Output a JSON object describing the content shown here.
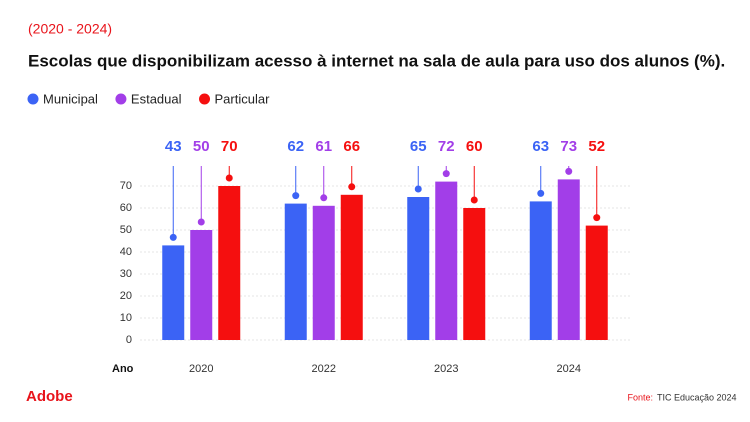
{
  "chart_data": {
    "type": "bar",
    "subtitle": "(2020 - 2024)",
    "title": "Escolas que disponibilizam acesso à internet na sala de aula para uso dos alunos (%).",
    "x_label": "Ano",
    "categories": [
      "2020",
      "2022",
      "2023",
      "2024"
    ],
    "series": [
      {
        "name": "Municipal",
        "color": "#3b63f5",
        "values": [
          43,
          62,
          65,
          63
        ]
      },
      {
        "name": "Estadual",
        "color": "#a23ee8",
        "values": [
          50,
          61,
          72,
          73
        ]
      },
      {
        "name": "Particular",
        "color": "#f50f0f",
        "values": [
          70,
          66,
          60,
          52
        ]
      }
    ],
    "ylim": [
      0,
      80
    ],
    "yticks": [
      0,
      10,
      20,
      30,
      40,
      50,
      60,
      70
    ],
    "grid": true,
    "legend": "top-left",
    "brand": "Adobe",
    "source_label": "Fonte:",
    "source": "TIC Educação 2024"
  }
}
